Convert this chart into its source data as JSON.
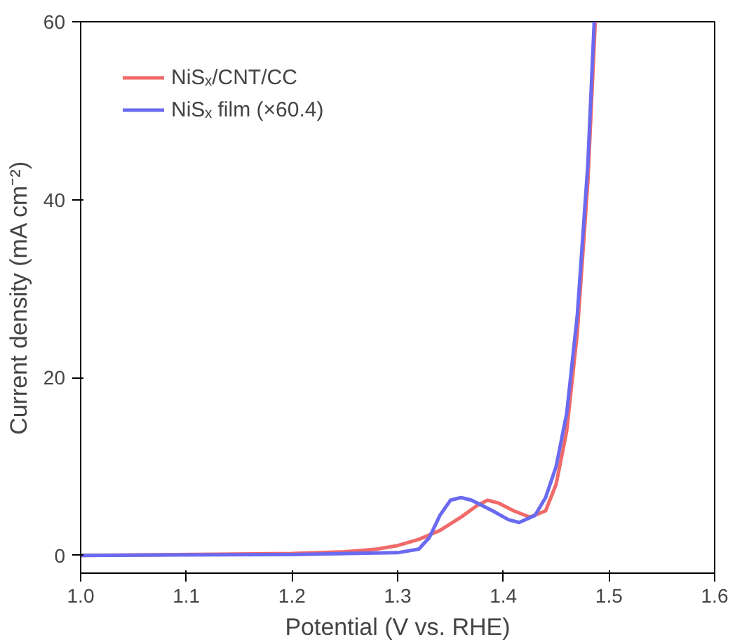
{
  "chart_data": {
    "type": "line",
    "xlabel": "Potential (V vs. RHE)",
    "ylabel": "Current density (mA cm⁻²)",
    "xlim": [
      1.0,
      1.6
    ],
    "ylim": [
      -2,
      60
    ],
    "xticks": [
      {
        "value": 1.0,
        "label": "1.0"
      },
      1.1,
      1.2,
      1.3,
      1.4,
      1.5,
      {
        "value": 1.6,
        "label": "1.6"
      }
    ],
    "yticks": [
      0,
      20,
      40,
      60
    ],
    "grid": false,
    "legend": "top left",
    "line_style": "solid",
    "marker": "none",
    "series": [
      {
        "name": "NiSₓ/CNT/CC",
        "color": "#f06a6a",
        "x": [
          1.0,
          1.2,
          1.25,
          1.28,
          1.3,
          1.32,
          1.34,
          1.36,
          1.375,
          1.385,
          1.395,
          1.41,
          1.425,
          1.44,
          1.45,
          1.46,
          1.47,
          1.48,
          1.487
        ],
        "values": [
          0,
          0.2,
          0.4,
          0.7,
          1.1,
          1.8,
          2.8,
          4.3,
          5.6,
          6.2,
          5.9,
          5.0,
          4.3,
          5.0,
          8,
          14,
          25,
          42,
          60
        ]
      },
      {
        "name": "NiSₓ film (×60.4)",
        "color": "#6a6af0",
        "x": [
          1.0,
          1.2,
          1.3,
          1.32,
          1.33,
          1.34,
          1.35,
          1.36,
          1.37,
          1.39,
          1.405,
          1.415,
          1.43,
          1.44,
          1.45,
          1.46,
          1.47,
          1.48,
          1.486
        ],
        "values": [
          0,
          0.1,
          0.3,
          0.7,
          2,
          4.5,
          6.2,
          6.5,
          6.2,
          5.0,
          4.0,
          3.7,
          4.5,
          6.5,
          10,
          16,
          27,
          44,
          60
        ]
      }
    ]
  }
}
